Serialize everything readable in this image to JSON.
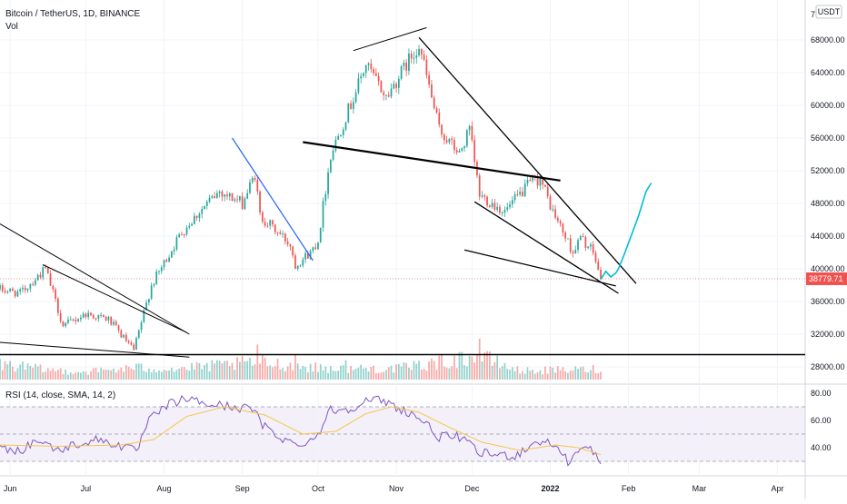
{
  "header": {
    "title": "Bitcoin / TetherUS, 1D, BINANCE",
    "volume_label": "Vol",
    "currency_badge": "USDT",
    "top_axis_fragment": "7"
  },
  "rsi_panel": {
    "title": "RSI (14, close, SMA, 14, 2)",
    "levels": [
      30,
      50,
      70
    ],
    "tick_labels": [
      "80.00",
      "60.00",
      "40.00"
    ],
    "tick_values": [
      80,
      60,
      40
    ],
    "ylim": [
      22,
      86
    ]
  },
  "price_badge": {
    "label": "38779.71",
    "value": 38779.71,
    "color": "#ef5350"
  },
  "colors": {
    "up": "#26a69a",
    "down": "#ef5350",
    "rsi": "#7e57c2",
    "rsi_ma": "#f7c548",
    "projection": "#00bcd4",
    "trendline": "#000000",
    "blue_trendline": "#2962ff"
  },
  "chart_data": [
    {
      "type": "candlestick",
      "title": "Bitcoin / TetherUS, 1D, BINANCE",
      "xlabel": "",
      "ylabel": "",
      "x_ticks": [
        "Jun",
        "Jul",
        "Aug",
        "Sep",
        "Oct",
        "Nov",
        "Dec",
        "2022",
        "Feb",
        "Mar",
        "Apr"
      ],
      "x_tick_dates": [
        "2021-06-01",
        "2021-07-01",
        "2021-08-01",
        "2021-09-01",
        "2021-10-01",
        "2021-11-01",
        "2021-12-01",
        "2022-01-01",
        "2022-02-01",
        "2022-03-01",
        "2022-04-01"
      ],
      "xlim": [
        "2021-05-28",
        "2022-04-12"
      ],
      "y_ticks": [
        28000,
        32000,
        36000,
        40000,
        44000,
        48000,
        52000,
        56000,
        60000,
        64000,
        68000
      ],
      "y_tick_labels": [
        "28000.00",
        "32000.00",
        "36000.00",
        "40000.00",
        "44000.00",
        "48000.00",
        "52000.00",
        "56000.00",
        "60000.00",
        "64000.00",
        "68000.00"
      ],
      "ylim": [
        26000,
        72000
      ],
      "last_price": 38779.71,
      "trend_anchors": [
        [
          "2021-05-28",
          37500
        ],
        [
          "2021-06-05",
          37000
        ],
        [
          "2021-06-15",
          40000
        ],
        [
          "2021-06-22",
          33000
        ],
        [
          "2021-07-01",
          34500
        ],
        [
          "2021-07-10",
          33800
        ],
        [
          "2021-07-20",
          30000
        ],
        [
          "2021-07-27",
          38000
        ],
        [
          "2021-08-08",
          44500
        ],
        [
          "2021-08-15",
          47000
        ],
        [
          "2021-08-23",
          49500
        ],
        [
          "2021-09-01",
          48000
        ],
        [
          "2021-09-06",
          51500
        ],
        [
          "2021-09-08",
          46500
        ],
        [
          "2021-09-20",
          43000
        ],
        [
          "2021-09-22",
          40500
        ],
        [
          "2021-09-28",
          42000
        ],
        [
          "2021-10-01",
          43500
        ],
        [
          "2021-10-06",
          54000
        ],
        [
          "2021-10-15",
          61000
        ],
        [
          "2021-10-20",
          65000
        ],
        [
          "2021-10-28",
          61000
        ],
        [
          "2021-11-08",
          66500
        ],
        [
          "2021-11-10",
          67500
        ],
        [
          "2021-11-18",
          57000
        ],
        [
          "2021-11-26",
          54000
        ],
        [
          "2021-11-30",
          57000
        ],
        [
          "2021-12-04",
          49000
        ],
        [
          "2021-12-14",
          47000
        ],
        [
          "2021-12-24",
          50500
        ],
        [
          "2021-12-28",
          51000
        ],
        [
          "2022-01-02",
          47000
        ],
        [
          "2022-01-10",
          42000
        ],
        [
          "2022-01-13",
          43800
        ],
        [
          "2022-01-18",
          42000
        ],
        [
          "2022-01-21",
          38779.71
        ]
      ],
      "volume": {
        "ylim": [
          0,
          140
        ],
        "anchors": [
          [
            "2021-05-28",
            40
          ],
          [
            "2021-06-15",
            25
          ],
          [
            "2021-07-01",
            20
          ],
          [
            "2021-07-20",
            30
          ],
          [
            "2021-08-08",
            28
          ],
          [
            "2021-09-07",
            45
          ],
          [
            "2021-10-01",
            30
          ],
          [
            "2021-11-01",
            28
          ],
          [
            "2021-12-04",
            60
          ],
          [
            "2021-12-20",
            22
          ],
          [
            "2022-01-10",
            25
          ],
          [
            "2022-01-21",
            28
          ]
        ],
        "spikes": [
          [
            "2021-09-07",
            90
          ],
          [
            "2021-09-22",
            65
          ],
          [
            "2021-10-12",
            50
          ],
          [
            "2021-12-04",
            105
          ],
          [
            "2021-11-16",
            48
          ]
        ]
      },
      "annotations": {
        "black_lines": [
          {
            "from": [
              "2021-05-28",
              45500
            ],
            "to": [
              "2021-08-11",
              32000
            ],
            "width": 1
          },
          {
            "from": [
              "2021-06-14",
              40500
            ],
            "to": [
              "2021-08-10",
              32200
            ],
            "width": 1
          },
          {
            "from": [
              "2021-05-28",
              31000
            ],
            "to": [
              "2021-08-11",
              29200
            ],
            "width": 1
          },
          {
            "from": [
              "2021-09-25",
              55500
            ],
            "to": [
              "2022-01-05",
              50800
            ],
            "width": 2.2
          },
          {
            "from": [
              "2021-10-15",
              66700
            ],
            "to": [
              "2021-11-13",
              69500
            ],
            "width": 1
          },
          {
            "from": [
              "2021-11-10",
              68300
            ],
            "to": [
              "2022-02-04",
              38200
            ],
            "width": 1.3
          },
          {
            "from": [
              "2021-12-02",
              48200
            ],
            "to": [
              "2022-01-28",
              37000
            ],
            "width": 1.3
          },
          {
            "from": [
              "2021-11-28",
              42300
            ],
            "to": [
              "2022-01-27",
              37900
            ],
            "width": 1.3
          }
        ],
        "blue_lines": [
          {
            "from": [
              "2021-08-28",
              56000
            ],
            "to": [
              "2021-09-29",
              41000
            ],
            "width": 1.2
          }
        ],
        "horizontal_lines": [
          {
            "value": 29500,
            "width": 1.6
          }
        ],
        "projection": [
          [
            "2022-01-21",
            38700
          ],
          [
            "2022-01-23",
            39700
          ],
          [
            "2022-01-25",
            39000
          ],
          [
            "2022-01-27",
            39500
          ],
          [
            "2022-01-28",
            40000
          ],
          [
            "2022-01-30",
            41500
          ],
          [
            "2022-02-02",
            44000
          ],
          [
            "2022-02-05",
            46500
          ],
          [
            "2022-02-08",
            49500
          ],
          [
            "2022-02-10",
            50500
          ]
        ]
      }
    },
    {
      "type": "line",
      "title": "RSI (14, close, SMA, 14, 2)",
      "series": [
        {
          "name": "",
          "kind": "rsi",
          "anchors": [
            [
              "2021-05-28",
              40
            ],
            [
              "2021-06-05",
              38
            ],
            [
              "2021-06-12",
              46
            ],
            [
              "2021-06-20",
              38
            ],
            [
              "2021-06-28",
              43
            ],
            [
              "2021-07-06",
              46
            ],
            [
              "2021-07-14",
              42
            ],
            [
              "2021-07-21",
              37
            ],
            [
              "2021-07-26",
              60
            ],
            [
              "2021-08-03",
              72
            ],
            [
              "2021-08-10",
              76
            ],
            [
              "2021-08-18",
              72
            ],
            [
              "2021-08-28",
              70
            ],
            [
              "2021-09-06",
              68
            ],
            [
              "2021-09-08",
              58
            ],
            [
              "2021-09-14",
              50
            ],
            [
              "2021-09-22",
              42
            ],
            [
              "2021-09-30",
              47
            ],
            [
              "2021-10-06",
              68
            ],
            [
              "2021-10-12",
              68
            ],
            [
              "2021-10-20",
              74
            ],
            [
              "2021-10-26",
              75
            ],
            [
              "2021-11-01",
              70
            ],
            [
              "2021-11-10",
              62
            ],
            [
              "2021-11-18",
              48
            ],
            [
              "2021-11-26",
              48
            ],
            [
              "2021-12-04",
              36
            ],
            [
              "2021-12-10",
              35
            ],
            [
              "2021-12-18",
              34
            ],
            [
              "2021-12-27",
              45
            ],
            [
              "2022-01-03",
              42
            ],
            [
              "2022-01-08",
              30
            ],
            [
              "2022-01-14",
              40
            ],
            [
              "2022-01-18",
              38
            ],
            [
              "2022-01-21",
              27
            ]
          ]
        },
        {
          "name": "",
          "kind": "rsi_ma",
          "anchors": [
            [
              "2021-05-28",
              42
            ],
            [
              "2021-06-20",
              41
            ],
            [
              "2021-07-15",
              42
            ],
            [
              "2021-07-28",
              46
            ],
            [
              "2021-08-10",
              63
            ],
            [
              "2021-08-25",
              70
            ],
            [
              "2021-09-10",
              64
            ],
            [
              "2021-09-25",
              50
            ],
            [
              "2021-10-08",
              52
            ],
            [
              "2021-10-20",
              65
            ],
            [
              "2021-10-30",
              70
            ],
            [
              "2021-11-10",
              66
            ],
            [
              "2021-11-22",
              55
            ],
            [
              "2021-12-05",
              44
            ],
            [
              "2021-12-20",
              38
            ],
            [
              "2022-01-03",
              42
            ],
            [
              "2022-01-12",
              40
            ],
            [
              "2022-01-21",
              35
            ]
          ]
        }
      ]
    }
  ]
}
